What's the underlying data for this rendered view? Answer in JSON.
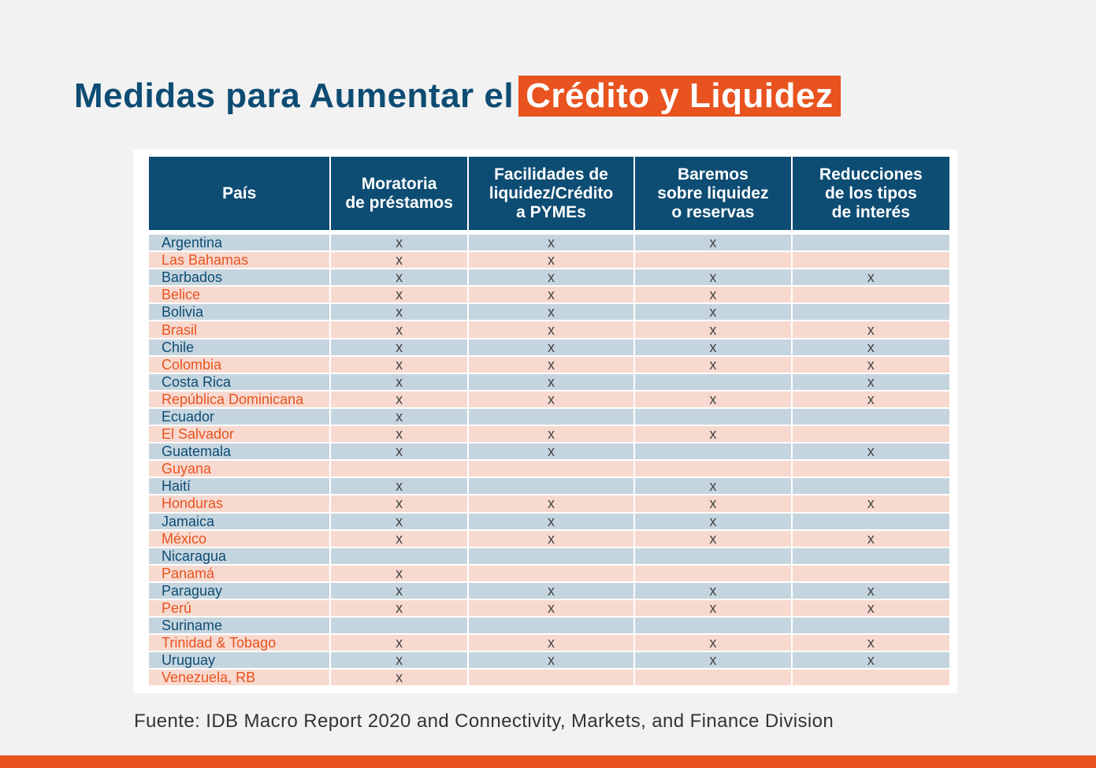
{
  "title": {
    "prefix": "Medidas para Aumentar el",
    "highlight": "Crédito y Liquidez"
  },
  "table": {
    "headers": [
      "País",
      "Moratoria\nde préstamos",
      "Facilidades de\nliquidez/Crédito\na PYMEs",
      "Baremos\nsobre liquidez\no reservas",
      "Reducciones\nde los tipos\nde interés"
    ],
    "rows": [
      [
        "Argentina",
        "x",
        "x",
        "x",
        ""
      ],
      [
        "Las Bahamas",
        "x",
        "x",
        "",
        ""
      ],
      [
        "Barbados",
        "x",
        "x",
        "x",
        "x"
      ],
      [
        "Belice",
        "x",
        "x",
        "x",
        ""
      ],
      [
        "Bolivia",
        "x",
        "x",
        "x",
        ""
      ],
      [
        "Brasil",
        "x",
        "x",
        "x",
        "x"
      ],
      [
        "Chile",
        "x",
        "x",
        "x",
        "x"
      ],
      [
        "Colombia",
        "x",
        "x",
        "x",
        "x"
      ],
      [
        "Costa Rica",
        "x",
        "x",
        "",
        "x"
      ],
      [
        "República Dominicana",
        "x",
        "x",
        "x",
        "x"
      ],
      [
        "Ecuador",
        "x",
        "",
        "",
        ""
      ],
      [
        "El Salvador",
        "x",
        "x",
        "x",
        ""
      ],
      [
        "Guatemala",
        "x",
        "x",
        "",
        "x"
      ],
      [
        "Guyana",
        "",
        "",
        "",
        ""
      ],
      [
        "Haití",
        "x",
        "",
        "x",
        ""
      ],
      [
        "Honduras",
        "x",
        "x",
        "x",
        "x"
      ],
      [
        "Jamaica",
        "x",
        "x",
        "x",
        ""
      ],
      [
        "México",
        "x",
        "x",
        "x",
        "x"
      ],
      [
        "Nicaragua",
        "",
        "",
        "",
        ""
      ],
      [
        "Panamá",
        "x",
        "",
        "",
        ""
      ],
      [
        "Paraguay",
        "x",
        "x",
        "x",
        "x"
      ],
      [
        "Perú",
        "x",
        "x",
        "x",
        "x"
      ],
      [
        "Suriname",
        "",
        "",
        "",
        ""
      ],
      [
        "Trinidad & Tobago",
        "x",
        "x",
        "x",
        "x"
      ],
      [
        "Uruguay",
        "x",
        "x",
        "x",
        "x"
      ],
      [
        "Venezuela, RB",
        "x",
        "",
        "",
        ""
      ]
    ]
  },
  "source": "Fuente: IDB Macro Report 2020 and Connectivity, Markets, and Finance Division",
  "colors": {
    "navy": "#0d4c73",
    "orange": "#e8531f",
    "row_blue": "#c5d5df",
    "row_pink": "#f8d9cf",
    "background": "#f2f2f2"
  }
}
